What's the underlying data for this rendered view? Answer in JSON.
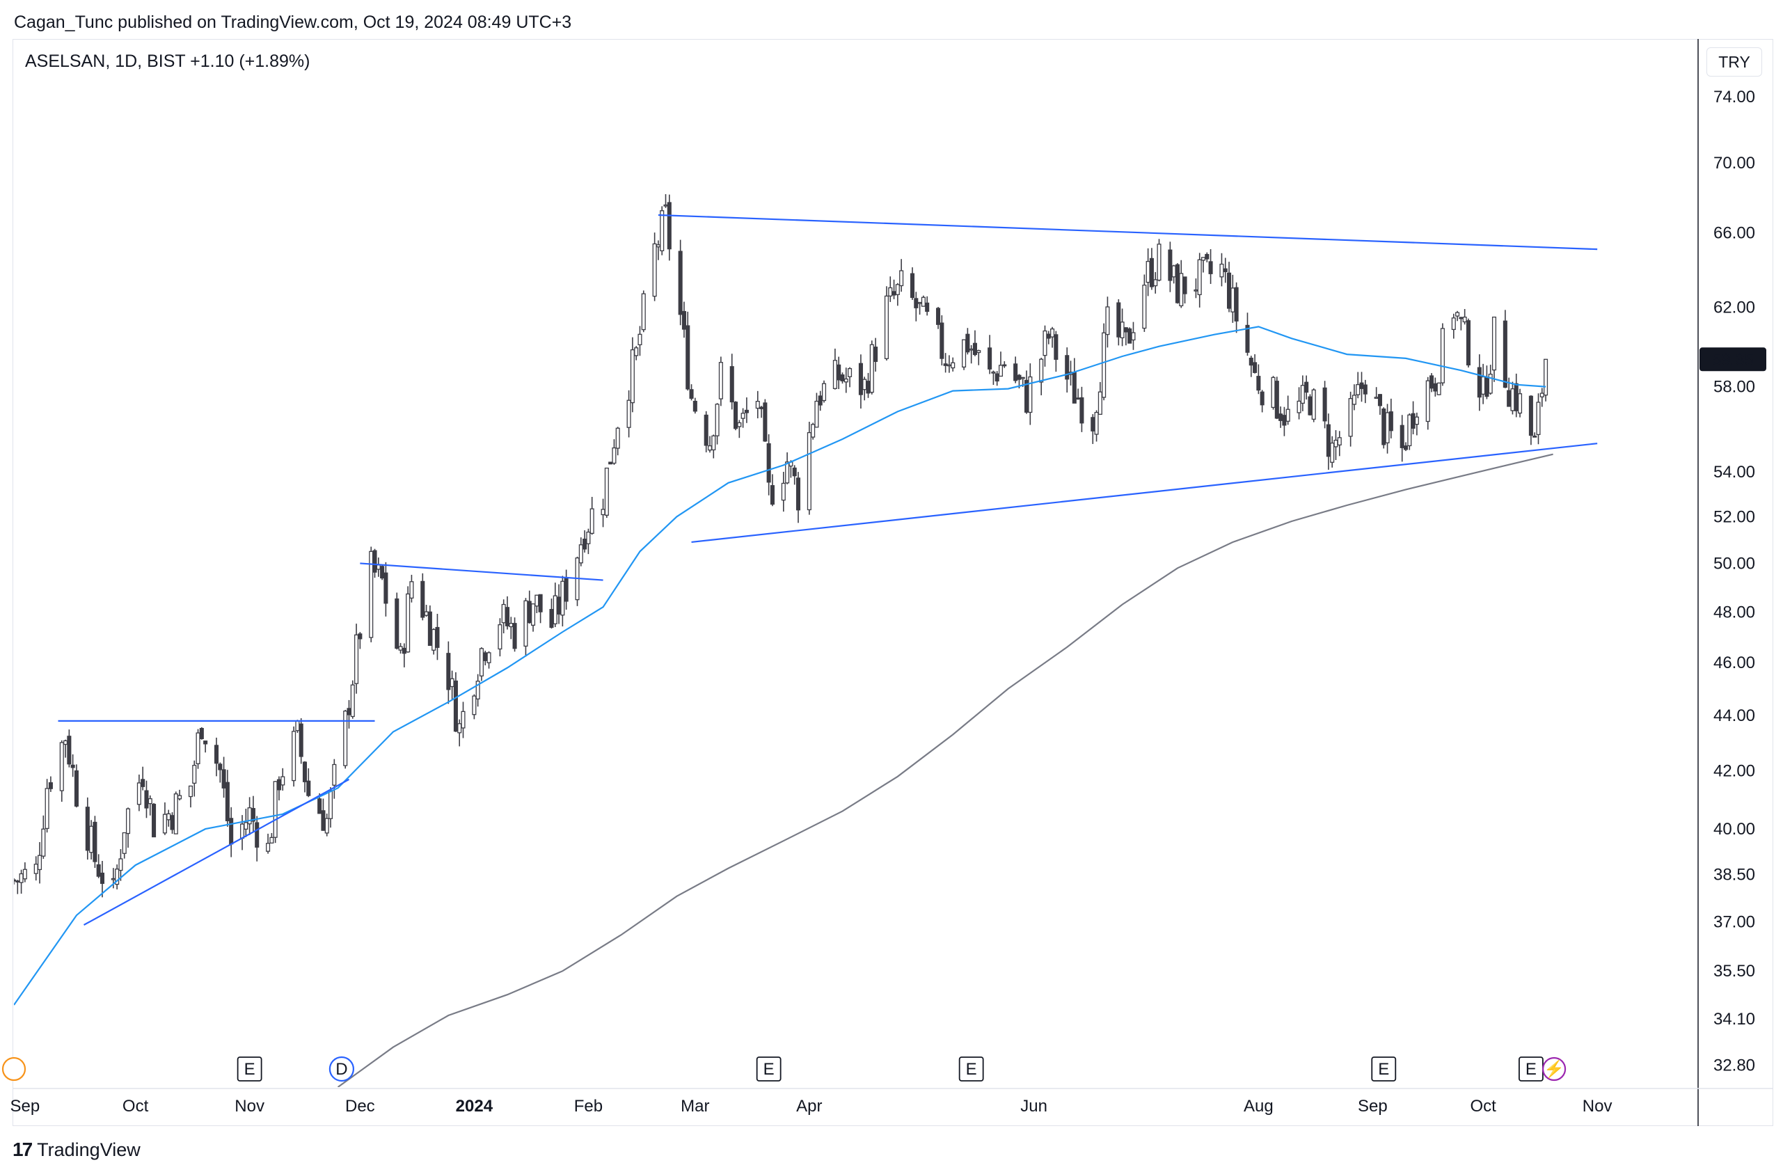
{
  "header": {
    "publish_line": "Cagan_Tunc published on TradingView.com, Oct 19, 2024 08:49 UTC+3",
    "symbol_line": "ASELSAN, 1D, BIST  +1.10 (+1.89%)",
    "currency": "TRY"
  },
  "footer": {
    "brand": "TradingView",
    "logo_glyph": "17"
  },
  "colors": {
    "up_candle": "#ffffff",
    "down_candle": "#3c3c44",
    "trendline": "#2962ff",
    "ma_fast": "#2196f3",
    "ma_slow": "#787b86",
    "price_tag_bg": "#131722"
  },
  "chart_data": {
    "type": "candlestick",
    "symbol": "ASELSAN",
    "interval": "1D",
    "exchange": "BIST",
    "change": "+1.10 (+1.89%)",
    "last_price": "59.35",
    "y_scale": "log",
    "ylim": [
      32.2,
      77.5
    ],
    "y_ticks": [
      "74.00",
      "70.00",
      "66.00",
      "62.00",
      "58.00",
      "54.00",
      "52.00",
      "50.00",
      "48.00",
      "46.00",
      "44.00",
      "42.00",
      "40.00",
      "38.50",
      "37.00",
      "35.50",
      "34.10",
      "32.80"
    ],
    "x_labels": [
      {
        "label": "Sep",
        "date": "2023-09-01"
      },
      {
        "label": "Oct",
        "date": "2023-10-01"
      },
      {
        "label": "Nov",
        "date": "2023-11-01"
      },
      {
        "label": "Dec",
        "date": "2023-12-01"
      },
      {
        "label": "2024",
        "date": "2024-01-01",
        "bold": true
      },
      {
        "label": "Feb",
        "date": "2024-02-01"
      },
      {
        "label": "Mar",
        "date": "2024-03-01"
      },
      {
        "label": "Apr",
        "date": "2024-04-01"
      },
      {
        "label": "Jun",
        "date": "2024-06-01"
      },
      {
        "label": "Aug",
        "date": "2024-08-01"
      },
      {
        "label": "Sep",
        "date": "2024-09-01"
      },
      {
        "label": "Oct",
        "date": "2024-10-01"
      },
      {
        "label": "Nov",
        "date": "2024-11-01"
      }
    ],
    "xlim": [
      "2023-08-29",
      "2024-11-28"
    ],
    "close_path": [
      [
        "2023-08-29",
        38.3
      ],
      [
        "2023-09-04",
        38.6
      ],
      [
        "2023-09-07",
        41.5
      ],
      [
        "2023-09-12",
        43.3
      ],
      [
        "2023-09-15",
        41.3
      ],
      [
        "2023-09-20",
        39.0
      ],
      [
        "2023-09-25",
        37.8
      ],
      [
        "2023-09-28",
        40.2
      ],
      [
        "2023-10-03",
        42.0
      ],
      [
        "2023-10-06",
        40.2
      ],
      [
        "2023-10-11",
        40.6
      ],
      [
        "2023-10-16",
        41.5
      ],
      [
        "2023-10-19",
        43.8
      ],
      [
        "2023-10-24",
        42.0
      ],
      [
        "2023-10-27",
        39.5
      ],
      [
        "2023-11-01",
        40.5
      ],
      [
        "2023-11-06",
        39.3
      ],
      [
        "2023-11-09",
        41.8
      ],
      [
        "2023-11-14",
        43.2
      ],
      [
        "2023-11-17",
        41.2
      ],
      [
        "2023-11-22",
        40.3
      ],
      [
        "2023-11-27",
        43.7
      ],
      [
        "2023-12-01",
        47.3
      ],
      [
        "2023-12-04",
        49.7
      ],
      [
        "2023-12-07",
        49.2
      ],
      [
        "2023-12-12",
        46.0
      ],
      [
        "2023-12-15",
        49.3
      ],
      [
        "2023-12-20",
        47.5
      ],
      [
        "2023-12-25",
        45.5
      ],
      [
        "2023-12-28",
        43.5
      ],
      [
        "2024-01-03",
        46.5
      ],
      [
        "2024-01-08",
        47.8
      ],
      [
        "2024-01-12",
        47.2
      ],
      [
        "2024-01-17",
        48.5
      ],
      [
        "2024-01-22",
        47.5
      ],
      [
        "2024-01-26",
        49.0
      ],
      [
        "2024-01-31",
        51.5
      ],
      [
        "2024-02-05",
        53.0
      ],
      [
        "2024-02-09",
        56.5
      ],
      [
        "2024-02-14",
        59.5
      ],
      [
        "2024-02-19",
        65.0
      ],
      [
        "2024-02-22",
        66.8
      ],
      [
        "2024-02-26",
        61.5
      ],
      [
        "2024-02-29",
        57.5
      ],
      [
        "2024-03-05",
        55.5
      ],
      [
        "2024-03-08",
        58.5
      ],
      [
        "2024-03-13",
        56.0
      ],
      [
        "2024-03-18",
        57.5
      ],
      [
        "2024-03-21",
        53.0
      ],
      [
        "2024-03-26",
        54.5
      ],
      [
        "2024-03-29",
        53.0
      ],
      [
        "2024-04-03",
        57.5
      ],
      [
        "2024-04-09",
        58.5
      ],
      [
        "2024-04-16",
        58.0
      ],
      [
        "2024-04-22",
        62.0
      ],
      [
        "2024-04-26",
        63.0
      ],
      [
        "2024-05-02",
        61.5
      ],
      [
        "2024-05-08",
        59.5
      ],
      [
        "2024-05-14",
        60.2
      ],
      [
        "2024-05-20",
        58.5
      ],
      [
        "2024-05-24",
        59.2
      ],
      [
        "2024-05-30",
        57.5
      ],
      [
        "2024-06-05",
        60.5
      ],
      [
        "2024-06-11",
        58.0
      ],
      [
        "2024-06-17",
        56.5
      ],
      [
        "2024-06-21",
        61.0
      ],
      [
        "2024-06-26",
        60.0
      ],
      [
        "2024-07-01",
        63.5
      ],
      [
        "2024-07-05",
        64.5
      ],
      [
        "2024-07-10",
        63.0
      ],
      [
        "2024-07-16",
        63.5
      ],
      [
        "2024-07-22",
        64.0
      ],
      [
        "2024-07-26",
        61.5
      ],
      [
        "2024-07-31",
        58.5
      ],
      [
        "2024-08-05",
        57.5
      ],
      [
        "2024-08-09",
        56.5
      ],
      [
        "2024-08-15",
        57.5
      ],
      [
        "2024-08-21",
        55.0
      ],
      [
        "2024-08-26",
        56.5
      ],
      [
        "2024-08-30",
        58.5
      ],
      [
        "2024-09-04",
        56.0
      ],
      [
        "2024-09-09",
        55.0
      ],
      [
        "2024-09-13",
        57.5
      ],
      [
        "2024-09-18",
        58.5
      ],
      [
        "2024-09-23",
        62.0
      ],
      [
        "2024-09-27",
        60.0
      ],
      [
        "2024-10-01",
        57.5
      ],
      [
        "2024-10-04",
        60.5
      ],
      [
        "2024-10-08",
        58.0
      ],
      [
        "2024-10-11",
        57.2
      ],
      [
        "2024-10-15",
        55.2
      ],
      [
        "2024-10-18",
        59.35
      ]
    ],
    "series": [
      {
        "indicator": "ma_fast",
        "points": [
          [
            "2023-08-29",
            34.5
          ],
          [
            "2023-09-15",
            37.2
          ],
          [
            "2023-10-01",
            38.8
          ],
          [
            "2023-10-20",
            40.0
          ],
          [
            "2023-11-10",
            40.5
          ],
          [
            "2023-11-25",
            41.4
          ],
          [
            "2023-12-10",
            43.4
          ],
          [
            "2023-12-25",
            44.5
          ],
          [
            "2024-01-10",
            45.8
          ],
          [
            "2024-01-25",
            47.2
          ],
          [
            "2024-02-05",
            48.2
          ],
          [
            "2024-02-15",
            50.5
          ],
          [
            "2024-02-25",
            52.0
          ],
          [
            "2024-03-10",
            53.5
          ],
          [
            "2024-03-25",
            54.3
          ],
          [
            "2024-04-10",
            55.5
          ],
          [
            "2024-04-25",
            56.8
          ],
          [
            "2024-05-10",
            57.8
          ],
          [
            "2024-05-25",
            57.9
          ],
          [
            "2024-06-10",
            58.6
          ],
          [
            "2024-06-25",
            59.5
          ],
          [
            "2024-07-05",
            60.0
          ],
          [
            "2024-07-20",
            60.6
          ],
          [
            "2024-08-01",
            61.0
          ],
          [
            "2024-08-10",
            60.4
          ],
          [
            "2024-08-25",
            59.6
          ],
          [
            "2024-09-10",
            59.4
          ],
          [
            "2024-09-25",
            58.8
          ],
          [
            "2024-10-10",
            58.1
          ],
          [
            "2024-10-18",
            58.0
          ]
        ]
      },
      {
        "indicator": "ma_slow",
        "points": [
          [
            "2023-11-25",
            32.2
          ],
          [
            "2023-12-10",
            33.3
          ],
          [
            "2023-12-25",
            34.2
          ],
          [
            "2024-01-10",
            34.8
          ],
          [
            "2024-01-25",
            35.5
          ],
          [
            "2024-02-10",
            36.6
          ],
          [
            "2024-02-25",
            37.8
          ],
          [
            "2024-03-10",
            38.7
          ],
          [
            "2024-03-25",
            39.6
          ],
          [
            "2024-04-10",
            40.6
          ],
          [
            "2024-04-25",
            41.8
          ],
          [
            "2024-05-10",
            43.3
          ],
          [
            "2024-05-25",
            45.0
          ],
          [
            "2024-06-10",
            46.6
          ],
          [
            "2024-06-25",
            48.3
          ],
          [
            "2024-07-10",
            49.8
          ],
          [
            "2024-07-25",
            50.9
          ],
          [
            "2024-08-10",
            51.8
          ],
          [
            "2024-08-25",
            52.5
          ],
          [
            "2024-09-10",
            53.2
          ],
          [
            "2024-09-25",
            53.8
          ],
          [
            "2024-10-10",
            54.4
          ],
          [
            "2024-10-20",
            54.8
          ]
        ]
      }
    ],
    "trendlines": [
      [
        [
          "2023-09-10",
          43.8
        ],
        [
          "2023-12-05",
          43.8
        ]
      ],
      [
        [
          "2023-09-17",
          36.9
        ],
        [
          "2023-11-28",
          41.7
        ]
      ],
      [
        [
          "2023-12-01",
          50.0
        ],
        [
          "2024-02-05",
          49.3
        ]
      ],
      [
        [
          "2024-02-20",
          67.0
        ],
        [
          "2024-11-01",
          65.1
        ]
      ],
      [
        [
          "2024-02-29",
          50.9
        ],
        [
          "2024-11-01",
          55.3
        ]
      ]
    ],
    "event_markers": [
      {
        "date": "2023-11-01",
        "label": "E",
        "kind": "earnings"
      },
      {
        "date": "2023-11-26",
        "label": "D",
        "kind": "dividend"
      },
      {
        "date": "2024-03-21",
        "label": "E",
        "kind": "earnings"
      },
      {
        "date": "2024-05-15",
        "label": "E",
        "kind": "earnings"
      },
      {
        "date": "2024-09-04",
        "label": "E",
        "kind": "earnings"
      },
      {
        "date": "2024-10-14",
        "label": "E",
        "kind": "earnings"
      },
      {
        "date": "2024-10-18",
        "label": "⚡",
        "kind": "flash"
      }
    ]
  }
}
